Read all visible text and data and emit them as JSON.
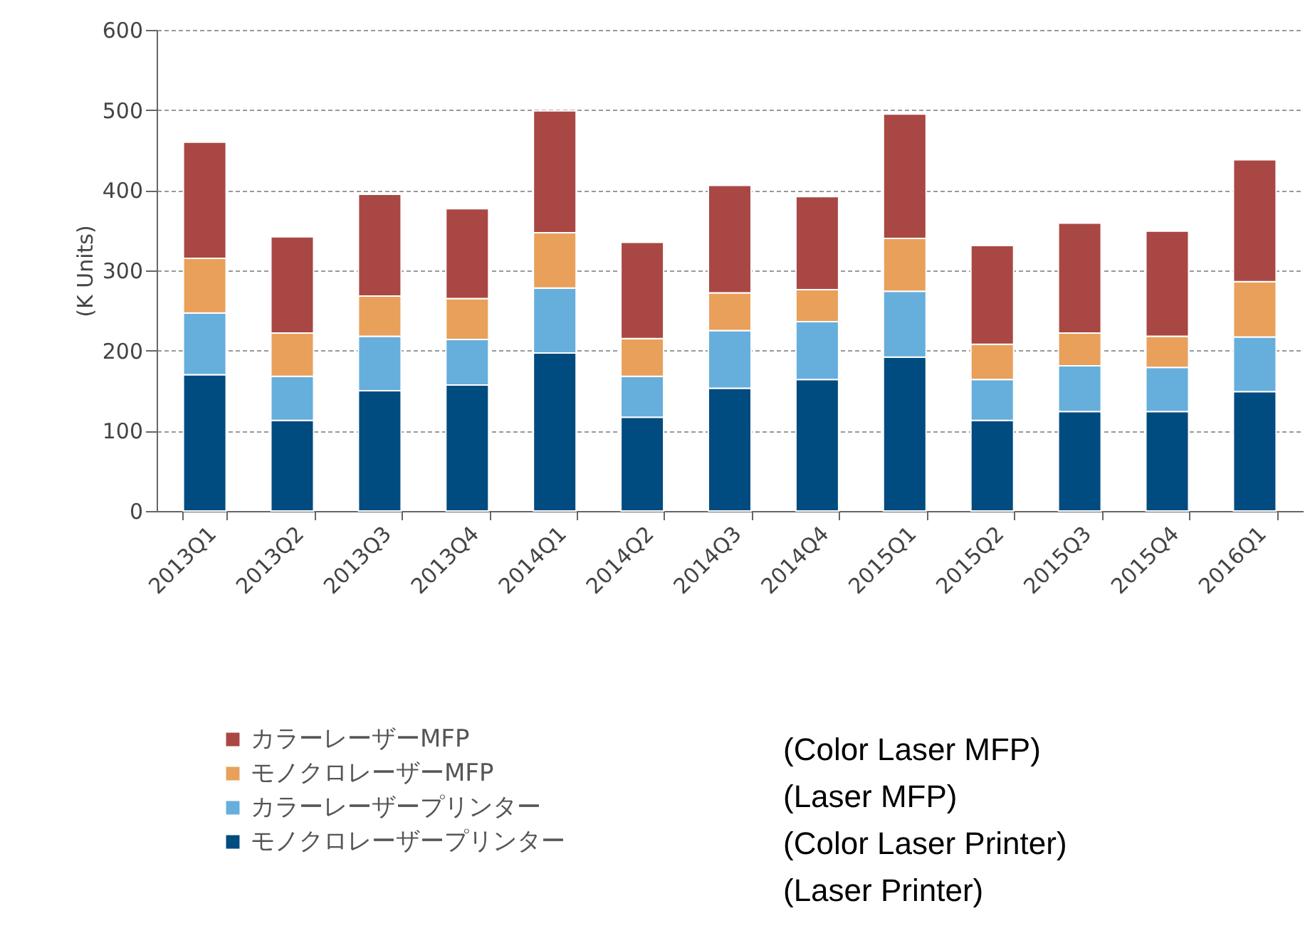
{
  "chart_data": {
    "type": "bar",
    "stacked": true,
    "ylabel": "(K Units)",
    "categories": [
      "2013Q1",
      "2013Q2",
      "2013Q3",
      "2013Q4",
      "2014Q1",
      "2014Q2",
      "2014Q3",
      "2014Q4",
      "2015Q1",
      "2015Q2",
      "2015Q3",
      "2015Q4",
      "2016Q1"
    ],
    "series": [
      {
        "name": "モノクロレーザープリンター",
        "color": "#004b7f",
        "values": [
          170,
          113,
          150,
          157,
          197,
          117,
          153,
          164,
          192,
          113,
          124,
          124,
          149
        ]
      },
      {
        "name": "カラーレーザープリンター",
        "color": "#66aedc",
        "values": [
          77,
          55,
          68,
          57,
          81,
          51,
          72,
          72,
          82,
          51,
          57,
          55,
          68
        ]
      },
      {
        "name": "モノクロレーザーMFP",
        "color": "#e9a05a",
        "values": [
          68,
          54,
          50,
          51,
          69,
          47,
          47,
          40,
          66,
          44,
          41,
          39,
          69
        ]
      },
      {
        "name": "カラーレーザーMFP",
        "color": "#a94744",
        "values": [
          145,
          120,
          127,
          112,
          152,
          120,
          134,
          116,
          155,
          123,
          137,
          131,
          152
        ]
      }
    ],
    "ylim": [
      0,
      600
    ],
    "yticks": [
      0,
      100,
      200,
      300,
      400,
      500,
      600
    ],
    "grid": "y",
    "legend": "bottom",
    "annotations": [
      "(Color Laser MFP)",
      "(Laser MFP)",
      "(Color Laser Printer)",
      "(Laser Printer)"
    ]
  }
}
